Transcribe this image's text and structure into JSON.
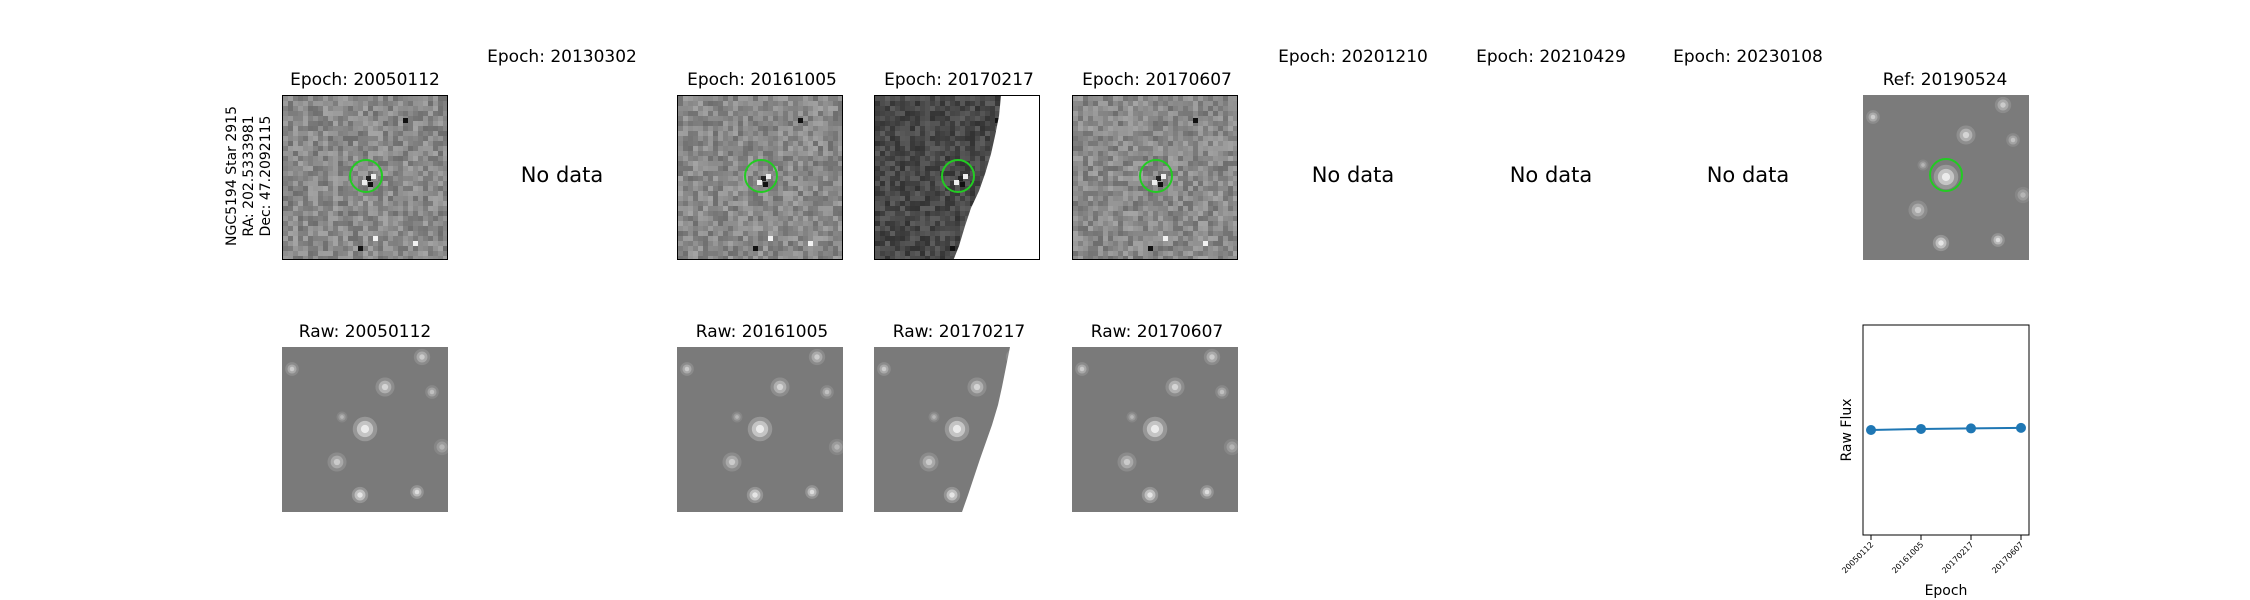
{
  "target": {
    "name": "NGC5194 Star 2915",
    "ra": "RA: 202.5333981",
    "dec": "Dec: 47.2092115"
  },
  "no_data_text": "No data",
  "epochs_row": [
    {
      "title": "Epoch: 20050112",
      "has_data": true
    },
    {
      "title": "Epoch: 20130302",
      "has_data": false
    },
    {
      "title": "Epoch: 20161005",
      "has_data": true
    },
    {
      "title": "Epoch: 20170217",
      "has_data": true,
      "partial_coverage": true
    },
    {
      "title": "Epoch: 20170607",
      "has_data": true
    },
    {
      "title": "Epoch: 20201210",
      "has_data": false
    },
    {
      "title": "Epoch: 20210429",
      "has_data": false
    },
    {
      "title": "Epoch: 20230108",
      "has_data": false
    }
  ],
  "reference": {
    "title": "Ref: 20190524"
  },
  "raw_row": [
    {
      "title": "Raw: 20050112"
    },
    {
      "title": "Raw: 20161005"
    },
    {
      "title": "Raw: 20170217",
      "partial_coverage": true
    },
    {
      "title": "Raw: 20170607"
    }
  ],
  "marker_color": "#22cc22",
  "line_color": "#1f77b4",
  "chart_data": {
    "type": "line",
    "categories": [
      "20050112",
      "20161005",
      "20170217",
      "20170607"
    ],
    "values": [
      1.0,
      1.01,
      1.015,
      1.02
    ],
    "xlabel": "Epoch",
    "ylabel": "Raw Flux",
    "ylim": [
      0,
      2
    ],
    "marker": "circle",
    "grid": false
  }
}
